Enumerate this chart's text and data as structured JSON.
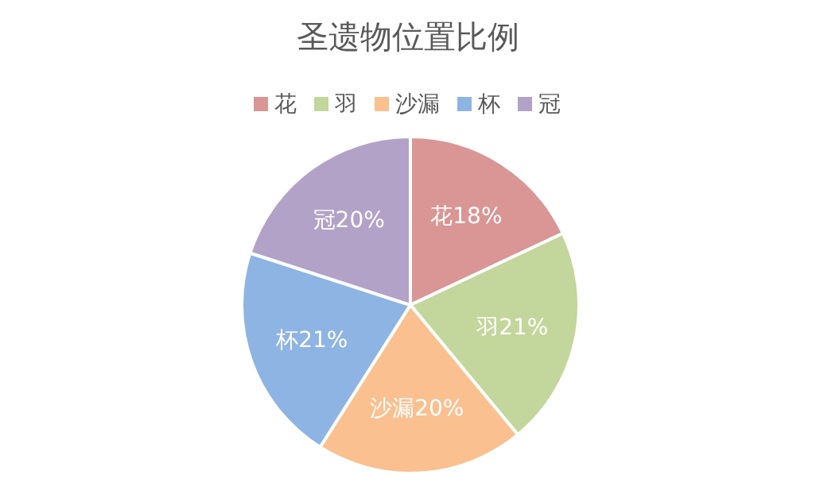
{
  "chart_data": {
    "type": "pie",
    "title": "圣遗物位置比例",
    "categories": [
      "花",
      "羽",
      "沙漏",
      "杯",
      "冠"
    ],
    "values": [
      18,
      21,
      20,
      21,
      20
    ],
    "colors": [
      "#d99694",
      "#c3d69b",
      "#fac090",
      "#8eb4e3",
      "#b3a2c7"
    ],
    "value_labels": [
      "花18%",
      "羽21%",
      "沙漏20%",
      "杯21%",
      "冠20%"
    ],
    "legend": "top"
  }
}
